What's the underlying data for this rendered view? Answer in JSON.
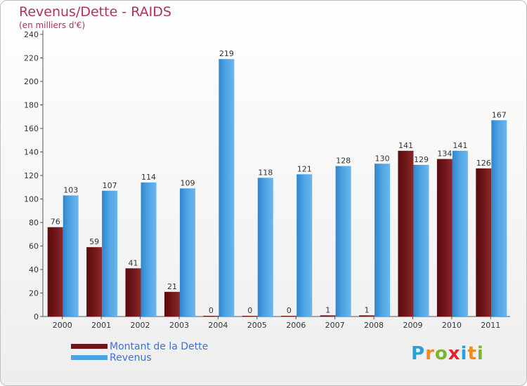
{
  "title": "Revenus/Dette - RAIDS",
  "subtitle": "(en milliers d'€)",
  "logo": {
    "text": "Proxiti",
    "letters": [
      {
        "ch": "P",
        "color": "#2b9fd8"
      },
      {
        "ch": "r",
        "color": "#ef8a1e"
      },
      {
        "ch": "o",
        "color": "#7ab52e"
      },
      {
        "ch": "x",
        "color": "#e2242b"
      },
      {
        "ch": "i",
        "color": "#2b9fd8"
      },
      {
        "ch": "t",
        "color": "#ef8a1e"
      },
      {
        "ch": "i",
        "color": "#7ab52e"
      }
    ]
  },
  "chart_data": {
    "type": "bar",
    "title": "Revenus/Dette - RAIDS",
    "subtitle": "(en milliers d'€)",
    "categories": [
      "2000",
      "2001",
      "2002",
      "2003",
      "2004",
      "2005",
      "2006",
      "2007",
      "2008",
      "2009",
      "2010",
      "2011"
    ],
    "series": [
      {
        "name": "Montant de la Dette",
        "color": "#6e1417",
        "values": [
          76,
          59,
          41,
          21,
          0,
          0,
          0,
          1,
          1,
          141,
          134,
          126
        ]
      },
      {
        "name": "Revenus",
        "color": "#4ea3e3",
        "values": [
          103,
          107,
          114,
          109,
          219,
          118,
          121,
          128,
          130,
          129,
          141,
          167
        ]
      }
    ],
    "ylim": [
      0,
      240
    ],
    "yticks": [
      0,
      20,
      40,
      60,
      80,
      100,
      120,
      140,
      160,
      180,
      200,
      220,
      240
    ],
    "grid": false,
    "legend_position": "bottom-left"
  }
}
